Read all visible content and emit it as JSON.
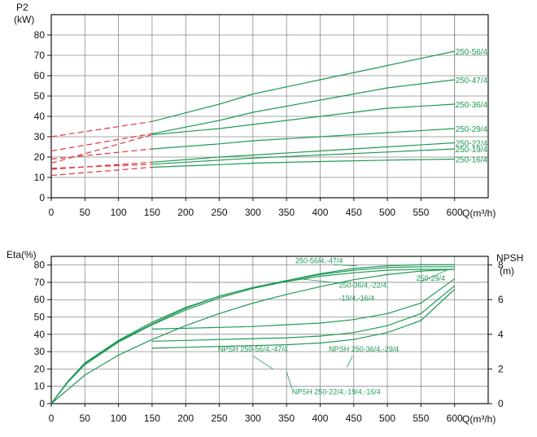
{
  "chart_data": [
    {
      "type": "line",
      "xlabel": "Q(m³/h)",
      "ylabel": "P2\n(kW)",
      "xlim": [
        0,
        650
      ],
      "ylim": [
        0,
        90
      ],
      "xticks": [
        0,
        50,
        100,
        150,
        200,
        250,
        300,
        350,
        400,
        450,
        500,
        550,
        600
      ],
      "yticks": [
        0,
        10,
        20,
        30,
        40,
        50,
        60,
        70,
        80
      ],
      "grid": true,
      "colors": {
        "solid": "#1e9a55",
        "dashed": "#e0363a",
        "grid": "#8a8a8a",
        "axis": "#111111"
      },
      "series": [
        {
          "name": "250-56/4",
          "dashed": {
            "x": [
              0,
              150
            ],
            "y": [
              30,
              37.5
            ]
          },
          "solid": {
            "x": [
              150,
              250,
              300,
              400,
              500,
              600
            ],
            "y": [
              37.5,
              46,
              51,
              58,
              65,
              72
            ]
          }
        },
        {
          "name": "250-47/4",
          "dashed": {
            "x": [
              0,
              150
            ],
            "y": [
              23,
              31.5
            ]
          },
          "solid": {
            "x": [
              150,
              250,
              300,
              400,
              500,
              600
            ],
            "y": [
              31.5,
              38,
              42,
              48,
              54,
              58
            ]
          }
        },
        {
          "name": "250-36/4",
          "dashed": {
            "x": [
              0,
              150
            ],
            "y": [
              17,
              31
            ]
          },
          "solid": {
            "x": [
              150,
              250,
              300,
              400,
              500,
              600
            ],
            "y": [
              31,
              34,
              36,
              40,
              44,
              46
            ]
          }
        },
        {
          "name": "250-29/4",
          "dashed": {
            "x": [
              0,
              150
            ],
            "y": [
              19,
              24
            ]
          },
          "solid": {
            "x": [
              150,
              250,
              300,
              400,
              500,
              600
            ],
            "y": [
              24,
              26.5,
              28,
              30,
              32,
              34
            ]
          }
        },
        {
          "name": "250-22/4",
          "dashed": {
            "x": [
              0,
              150
            ],
            "y": [
              14,
              17.5
            ]
          },
          "solid": {
            "x": [
              150,
              250,
              300,
              400,
              500,
              600
            ],
            "y": [
              17.5,
              20,
              21,
              23,
              25,
              27
            ]
          }
        },
        {
          "name": "250-19/4",
          "dashed": {
            "x": [
              0,
              150
            ],
            "y": [
              14.5,
              16.5
            ]
          },
          "solid": {
            "x": [
              150,
              250,
              300,
              400,
              500,
              600
            ],
            "y": [
              16.5,
              18.5,
              19.5,
              21,
              22.5,
              24
            ]
          }
        },
        {
          "name": "250-16/4",
          "dashed": {
            "x": [
              0,
              150
            ],
            "y": [
              11,
              15
            ]
          },
          "solid": {
            "x": [
              150,
              250,
              300,
              400,
              500,
              600
            ],
            "y": [
              15,
              16.3,
              17,
              17.8,
              18.5,
              19
            ]
          }
        }
      ]
    },
    {
      "type": "line",
      "xlabel": "Q(m³/h)",
      "ylabel": "Eta(%)",
      "y2label": "NPSH\n(m)",
      "xlim": [
        0,
        650
      ],
      "ylim": [
        0,
        85
      ],
      "y2lim": [
        0,
        8.5
      ],
      "xticks": [
        0,
        50,
        100,
        150,
        200,
        250,
        300,
        350,
        400,
        450,
        500,
        550,
        600
      ],
      "yticks": [
        0,
        10,
        20,
        30,
        40,
        50,
        60,
        70,
        80
      ],
      "y2ticks": [
        0,
        2,
        4,
        6,
        8
      ],
      "grid": true,
      "colors": {
        "line": "#1e9a55",
        "grid": "#8a8a8a",
        "axis": "#111111"
      },
      "eta_series": [
        {
          "name": "250-56/4,-47/4",
          "x": [
            0,
            25,
            50,
            100,
            150,
            200,
            250,
            300,
            350,
            400,
            450,
            500,
            550,
            600
          ],
          "y": [
            0,
            13,
            23,
            36,
            46,
            55,
            62,
            67,
            71,
            75,
            78,
            79.5,
            80.2,
            80.2
          ]
        },
        {
          "name": "250-56/4,-47/4",
          "x": [
            0,
            25,
            50,
            100,
            150,
            200,
            250,
            300,
            350,
            400,
            450,
            500,
            550,
            600
          ],
          "y": [
            0,
            13,
            23.5,
            36.5,
            47,
            55.5,
            62,
            67,
            71,
            74.5,
            77,
            78.5,
            79,
            79
          ]
        },
        {
          "name": "250-36/4,-22/4,-19/4,-16/4",
          "x": [
            0,
            25,
            50,
            100,
            150,
            200,
            250,
            300,
            350,
            400,
            450,
            500,
            550,
            600
          ],
          "y": [
            0,
            12.5,
            22.5,
            35.5,
            45.5,
            54,
            61,
            66.5,
            70.5,
            73.5,
            75.5,
            77,
            77.5,
            77.5
          ]
        },
        {
          "name": "250-29/4",
          "x": [
            0,
            50,
            100,
            150,
            200,
            250,
            300,
            350,
            400,
            450,
            500,
            550,
            600
          ],
          "y": [
            0,
            16.5,
            28,
            37,
            45,
            52,
            58,
            63,
            67.5,
            71.5,
            74.5,
            76.5,
            77.5
          ]
        }
      ],
      "npsh_series": [
        {
          "name": "NPSH 250-56/4,-47/4",
          "x": [
            150,
            200,
            250,
            300,
            350,
            400,
            450,
            500,
            550,
            600
          ],
          "y": [
            4.3,
            4.35,
            4.4,
            4.45,
            4.55,
            4.65,
            4.85,
            5.2,
            5.8,
            7.2
          ]
        },
        {
          "name": "NPSH 250-36/4,-29/4",
          "x": [
            150,
            200,
            250,
            300,
            350,
            400,
            450,
            500,
            550,
            600
          ],
          "y": [
            3.6,
            3.65,
            3.7,
            3.75,
            3.8,
            3.9,
            4.1,
            4.5,
            5.2,
            6.8
          ]
        },
        {
          "name": "NPSH 250-22/4,-19/4,-16/4",
          "x": [
            150,
            200,
            250,
            300,
            350,
            400,
            450,
            500,
            550,
            600
          ],
          "y": [
            3.2,
            3.25,
            3.3,
            3.35,
            3.4,
            3.5,
            3.7,
            4.1,
            4.8,
            6.6
          ]
        }
      ],
      "annotations": [
        {
          "text": "250-56/4,-47/4",
          "at": [
            363,
            81
          ]
        },
        {
          "text": "250-29/4",
          "at": [
            543,
            71
          ]
        },
        {
          "text": "250-36/4,-22/4,",
          "at": [
            428,
            67
          ]
        },
        {
          "text": "-19/4,-16/4",
          "at": [
            428,
            59.5
          ]
        },
        {
          "text": "NPSH 250-56/4,-47/4",
          "at": [
            248,
            30
          ]
        },
        {
          "text": "NPSH 250-36/4,-29/4",
          "at": [
            413,
            30
          ]
        },
        {
          "text": "NPSH 250-22/4,-19/4,-16/4",
          "at": [
            358,
            5.5
          ]
        }
      ]
    }
  ]
}
